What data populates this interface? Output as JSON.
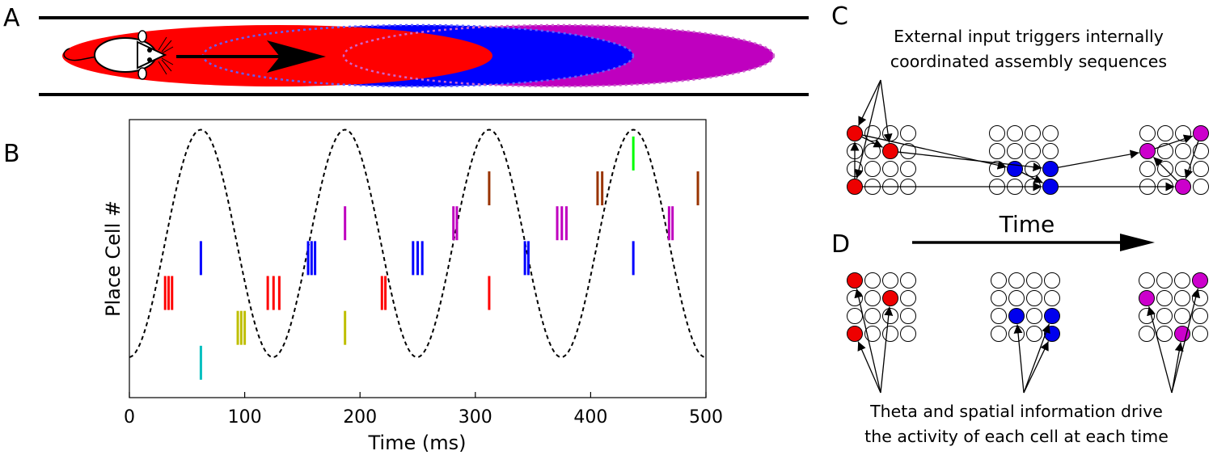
{
  "panels": {
    "a": {
      "label": "A"
    },
    "b": {
      "label": "B"
    },
    "c": {
      "label": "C"
    },
    "d": {
      "label": "D"
    }
  },
  "colors": {
    "red": "#ff0000",
    "blue": "#0000ff",
    "magenta": "#bf00bf",
    "yellow": "#bfbf00",
    "cyan": "#00bfbf",
    "green": "#00ff00",
    "brown": "#993300",
    "cell_red": "#ee0000",
    "cell_blue": "#0000ee",
    "cell_magenta": "#cc00cc"
  },
  "icons": [
    "rat-icon",
    "arrow-right-icon"
  ],
  "chart_data": {
    "type": "scatter",
    "title": "",
    "xlabel": "Time (ms)",
    "ylabel": "Place Cell #",
    "xlim": [
      0,
      500
    ],
    "ylim": [
      0,
      11
    ],
    "xticks": [
      "0",
      "100",
      "200",
      "300",
      "400",
      "500"
    ],
    "grid": false,
    "theta_wave": {
      "style": "dashed",
      "color": "#000000",
      "period_ms": 125,
      "peak_ms": 62
    },
    "series": [
      {
        "color": "#00bfbf",
        "cell": 1,
        "spikes_ms": [
          62
        ]
      },
      {
        "color": "#bfbf00",
        "cell": 2,
        "spikes_ms": [
          94,
          97,
          100,
          187
        ]
      },
      {
        "color": "#ff0000",
        "cell": 3,
        "spikes_ms": [
          31,
          34,
          37,
          120,
          125,
          130,
          219,
          222,
          312
        ]
      },
      {
        "color": "#0000ff",
        "cell": 4,
        "spikes_ms": [
          62,
          155,
          158,
          161,
          246,
          250,
          254,
          343,
          346,
          437
        ]
      },
      {
        "color": "#bf00bf",
        "cell": 5,
        "spikes_ms": [
          187,
          281,
          284,
          371,
          375,
          379,
          468,
          471
        ]
      },
      {
        "color": "#993300",
        "cell": 6,
        "spikes_ms": [
          312,
          406,
          410,
          493
        ]
      },
      {
        "color": "#00ff00",
        "cell": 7,
        "spikes_ms": [
          437
        ]
      }
    ]
  },
  "panel_c": {
    "caption_line1": "External input triggers internally",
    "caption_line2": "coordinated assembly sequences"
  },
  "panel_d": {
    "time_label": "Time",
    "caption_line1": "Theta and spatial information drive",
    "caption_line2": "the activity of each cell at each time"
  }
}
